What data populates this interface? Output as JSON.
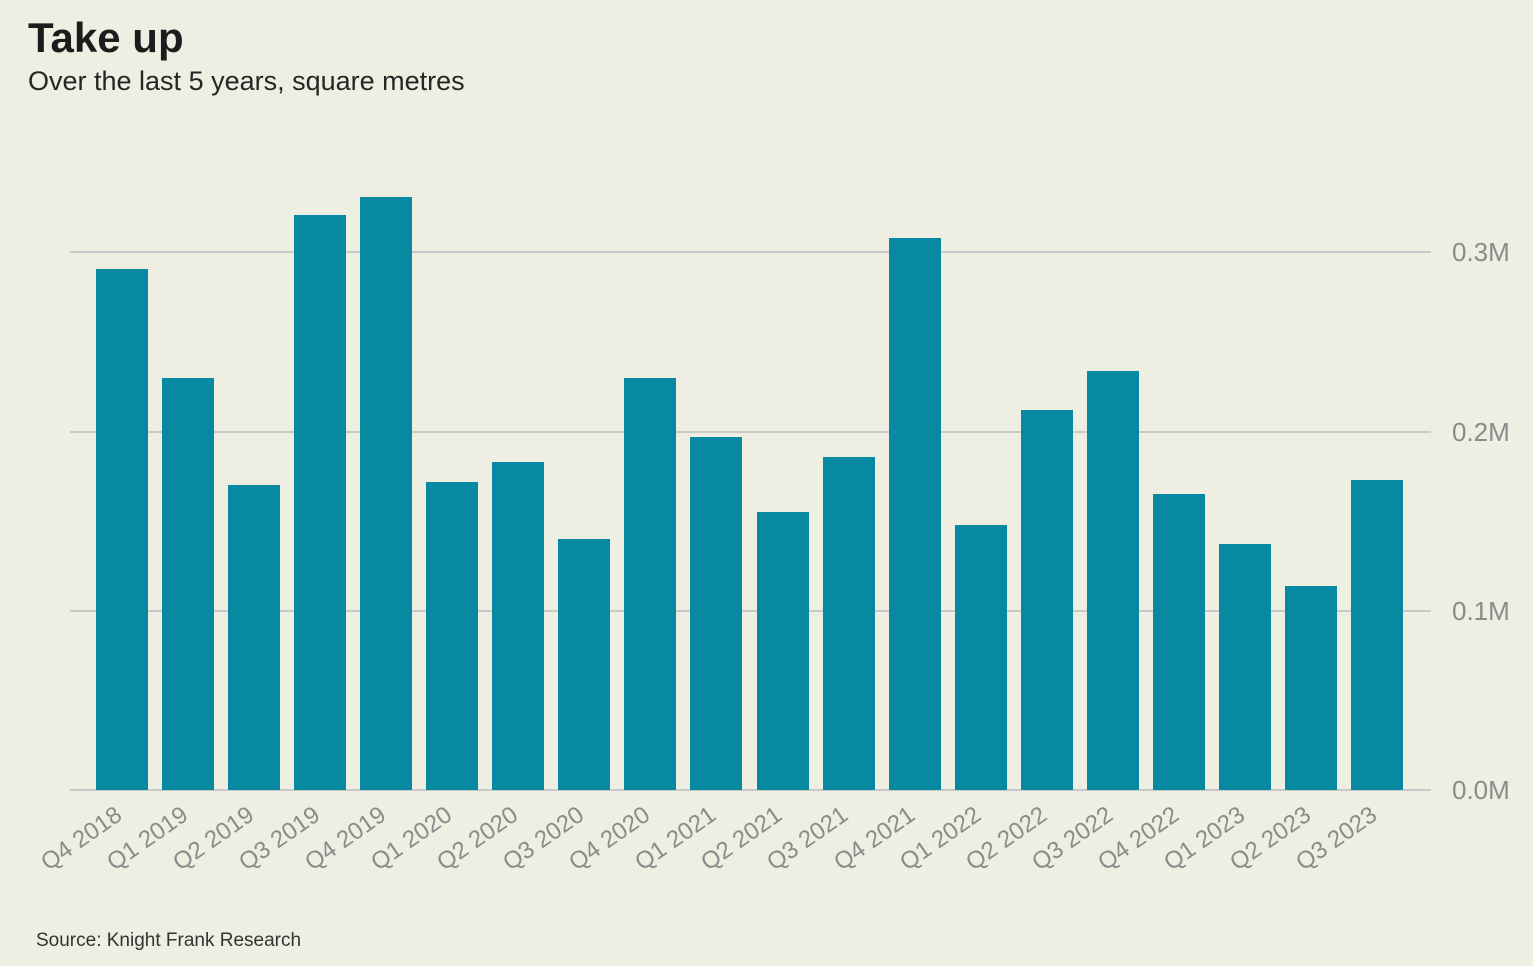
{
  "chart": {
    "title": "Take up",
    "subtitle": "Over the last 5 years, square metres",
    "source": "Source: Knight Frank Research"
  },
  "chart_data": {
    "type": "bar",
    "title": "Take up",
    "subtitle": "Over the last 5 years, square metres",
    "source": "Source: Knight Frank Research",
    "unit": "M square metres",
    "categories": [
      "Q4 2018",
      "Q1 2019",
      "Q2 2019",
      "Q3 2019",
      "Q4 2019",
      "Q1 2020",
      "Q2 2020",
      "Q3 2020",
      "Q4 2020",
      "Q1 2021",
      "Q2 2021",
      "Q3 2021",
      "Q4 2021",
      "Q1 2022",
      "Q2 2022",
      "Q3 2022",
      "Q4 2022",
      "Q1 2023",
      "Q2 2023",
      "Q3 2023"
    ],
    "values": [
      0.291,
      0.23,
      0.17,
      0.321,
      0.331,
      0.172,
      0.183,
      0.14,
      0.23,
      0.197,
      0.155,
      0.186,
      0.308,
      0.148,
      0.212,
      0.234,
      0.165,
      0.137,
      0.114,
      0.173
    ],
    "xlabel": "",
    "ylabel": "",
    "ylim": [
      0,
      0.357
    ],
    "yticks": [
      {
        "label": "0.0M",
        "value": 0.0
      },
      {
        "label": "0.1M",
        "value": 0.1
      },
      {
        "label": "0.2M",
        "value": 0.2
      },
      {
        "label": "0.3M",
        "value": 0.3
      }
    ],
    "grid": true,
    "legend": false,
    "colors": {
      "bar": "#0889a2",
      "background": "#efeee2",
      "gridline": "#c9c9c9",
      "axis_text": "#8b8b8b",
      "title_text": "#1c1c1c"
    }
  }
}
